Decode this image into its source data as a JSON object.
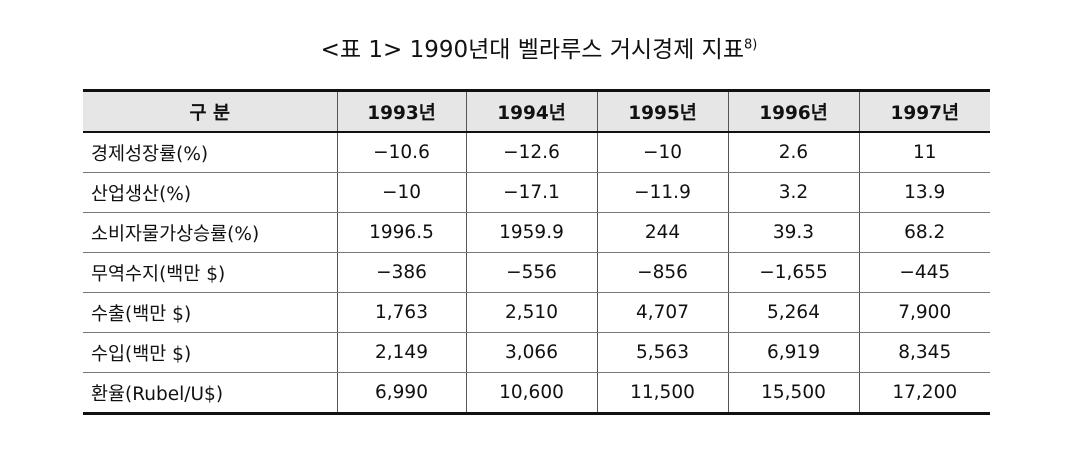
{
  "title": "<표 1> 1990년대 벨라루스 거시경제 지표",
  "footnote_ref": "8)",
  "table": {
    "header": [
      "구  분",
      "1993년",
      "1994년",
      "1995년",
      "1996년",
      "1997년"
    ],
    "rows": [
      [
        "경제성장률(%)",
        "−10.6",
        "−12.6",
        "−10",
        "2.6",
        "11"
      ],
      [
        "산업생산(%)",
        "−10",
        "−17.1",
        "−11.9",
        "3.2",
        "13.9"
      ],
      [
        "소비자물가상승률(%)",
        "1996.5",
        "1959.9",
        "244",
        "39.3",
        "68.2"
      ],
      [
        "무역수지(백만 $)",
        "−386",
        "−556",
        "−856",
        "−1,655",
        "−445"
      ],
      [
        "수출(백만 $)",
        "1,763",
        "2,510",
        "4,707",
        "5,264",
        "7,900"
      ],
      [
        "수입(백만 $)",
        "2,149",
        "3,066",
        "5,563",
        "6,919",
        "8,345"
      ],
      [
        "환율(Rubel/U$)",
        "6,990",
        "10,600",
        "11,500",
        "15,500",
        "17,200"
      ]
    ]
  }
}
